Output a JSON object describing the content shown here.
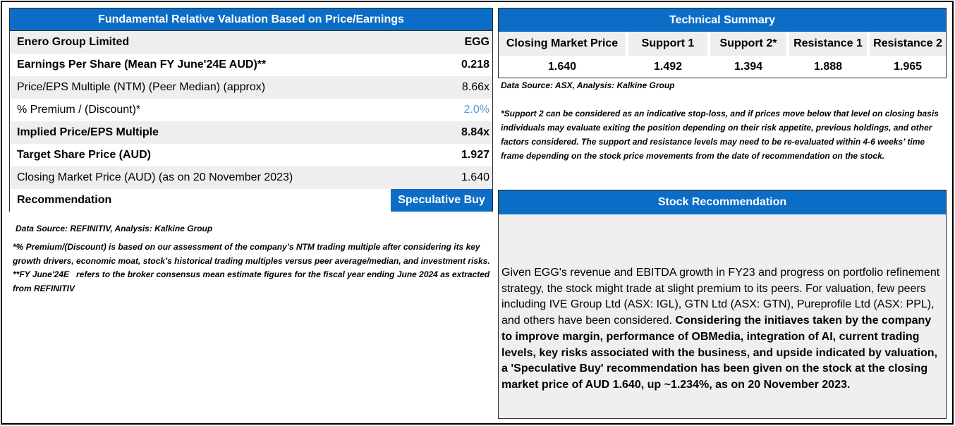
{
  "left_panel": {
    "title": "Fundamental Relative Valuation Based on Price/Earnings",
    "rows": [
      {
        "label": "Enero Group Limited",
        "value": "EGG"
      },
      {
        "label": "Earnings Per Share (Mean FY June'24E AUD)**",
        "value": "0.218"
      },
      {
        "label": "Price/EPS Multiple (NTM) (Peer Median) (approx)",
        "value": "8.66x"
      },
      {
        "label": "% Premium / (Discount)*",
        "value": "2.0%"
      },
      {
        "label": "Implied Price/EPS Multiple",
        "value": "8.84x"
      },
      {
        "label": "Target Share Price (AUD)",
        "value": "1.927"
      },
      {
        "label": "Closing Market Price (AUD) (as on 20 November 2023)",
        "value": "1.640"
      },
      {
        "label": "Recommendation",
        "value": "Speculative Buy"
      }
    ],
    "data_source": "Data Source: REFINITIV, Analysis: Kalkine Group",
    "footnote": "*% Premium/(Discount) is based on our assessment of the company’s NTM trading multiple after considering its key growth drivers, economic moat, stock’s historical trading multiples versus peer average/median, and investment risks.                                                                                           **FY June'24E   refers to the broker consensus mean estimate figures for the fiscal year ending June 2024 as extracted from REFINITIV"
  },
  "technical_summary": {
    "title": "Technical Summary",
    "columns": [
      {
        "header": "Closing Market Price",
        "value": "1.640"
      },
      {
        "header": "Support 1",
        "value": "1.492"
      },
      {
        "header": "Support 2*",
        "value": "1.394"
      },
      {
        "header": "Resistance 1",
        "value": "1.888"
      },
      {
        "header": "Resistance 2",
        "value": "1.965"
      }
    ],
    "data_source": "Data Source: ASX, Analysis: Kalkine Group",
    "footnote": "*Support 2 can be considered as an indicative stop-loss, and if prices move below that level on closing basis individuals may evaluate exiting the position depending on their risk appetite, previous holdings, and other factors considered. The support and resistance levels may need to be re-evaluated within 4-6 weeks’ time frame depending on the stock price movements from the date of recommendation on the stock."
  },
  "stock_recommendation": {
    "title": "Stock Recommendation",
    "text_regular": "Given EGG's revenue and EBITDA growth in FY23 and progress on portfolio refinement strategy, the stock might trade at slight premium to its peers. For valuation, few peers including IVE Group Ltd (ASX: IGL), GTN Ltd (ASX: GTN), Pureprofile Ltd (ASX: PPL), and others have been considered. ",
    "text_bold": "Considering the initiaves taken by the company to improve margin, performance of OBMedia, integration of AI, current trading levels, key risks associated with the business, and upside indicated by valuation, a 'Speculative Buy' recommendation has been given on the stock at the closing market price of AUD 1.640, up ~1.234%, as on 20 November 2023."
  },
  "colors": {
    "header_blue": "#0C6DC6",
    "premium_value_blue": "#5B9BD5",
    "row_gray": "#EEEEEE",
    "panel_gray": "#EFEFEF"
  }
}
